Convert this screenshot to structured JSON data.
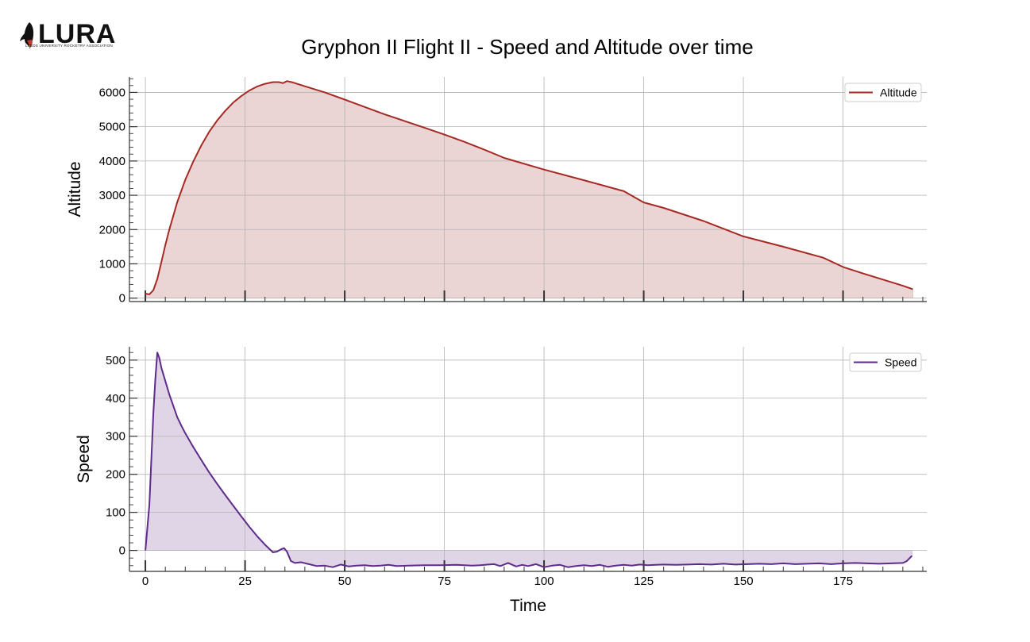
{
  "logo": {
    "wordmark": "LURA",
    "subtitle": "LEEDS UNIVERSITY ROCKETRY ASSOCIATION"
  },
  "figure_title": "Gryphon II Flight II - Speed and Altitude over time",
  "colors": {
    "altitude": "#a52a24",
    "altitude_fill": "#ebd5d4",
    "speed": "#5e2b8a",
    "speed_fill": "#e0d5e7",
    "grid": "#b3b3b3",
    "axis": "#333333"
  },
  "chart_data": [
    {
      "type": "area",
      "ylabel": "Altitude",
      "xlabel": "",
      "legend": "Altitude",
      "legend_position": "top-right",
      "grid": true,
      "xlim": [
        -4,
        196
      ],
      "ylim": [
        -100,
        6450
      ],
      "yticks": [
        0,
        1000,
        2000,
        3000,
        4000,
        5000,
        6000
      ],
      "series": [
        {
          "name": "Altitude",
          "x": [
            0,
            1,
            2,
            3,
            4,
            5,
            6,
            7,
            8,
            10,
            12,
            14,
            16,
            18,
            20,
            22,
            24,
            26,
            28,
            30,
            32,
            33.5,
            34.5,
            35.5,
            37,
            40,
            45,
            50,
            60,
            70,
            75,
            80,
            85,
            90,
            100,
            110,
            120,
            125,
            130,
            140,
            150,
            160,
            170,
            175,
            180,
            185,
            190,
            192.5
          ],
          "y": [
            130,
            110,
            230,
            560,
            1050,
            1550,
            2000,
            2400,
            2800,
            3450,
            3980,
            4450,
            4850,
            5180,
            5460,
            5700,
            5890,
            6050,
            6170,
            6250,
            6300,
            6300,
            6270,
            6330,
            6290,
            6180,
            6000,
            5790,
            5360,
            4970,
            4770,
            4560,
            4330,
            4090,
            3750,
            3440,
            3120,
            2790,
            2630,
            2250,
            1800,
            1500,
            1180,
            910,
            720,
            540,
            360,
            260
          ]
        }
      ]
    },
    {
      "type": "area",
      "ylabel": "Speed",
      "xlabel": "Time",
      "legend": "Speed",
      "legend_position": "top-right",
      "grid": true,
      "xlim": [
        -4,
        196
      ],
      "ylim": [
        -55,
        535
      ],
      "xticks": [
        0,
        25,
        50,
        75,
        100,
        125,
        150,
        175
      ],
      "yticks": [
        0,
        100,
        200,
        300,
        400,
        500
      ],
      "series": [
        {
          "name": "Speed",
          "x": [
            0,
            1,
            1.5,
            2,
            2.5,
            3,
            3.5,
            4,
            5,
            6,
            7,
            8,
            9,
            10,
            12,
            14,
            16,
            18,
            20,
            22,
            24,
            26,
            28,
            30,
            32,
            33,
            34,
            34.8,
            35.5,
            36.5,
            37.5,
            39,
            41,
            43,
            45,
            47,
            49,
            51,
            53,
            55,
            57,
            59,
            61,
            63,
            66,
            70,
            74,
            78,
            82,
            84,
            86,
            87.5,
            89,
            91,
            93,
            94.5,
            96,
            98,
            100,
            102,
            104,
            106,
            108,
            110,
            112,
            114,
            116,
            118,
            120,
            122,
            124,
            126,
            128,
            130,
            133,
            136,
            139,
            142,
            145,
            148,
            151,
            154,
            157,
            160,
            163,
            166,
            169,
            172,
            175,
            178,
            181,
            184,
            187,
            190,
            191,
            192.3
          ],
          "y": [
            0,
            120,
            240,
            360,
            450,
            520,
            505,
            480,
            445,
            410,
            380,
            350,
            328,
            308,
            272,
            238,
            205,
            175,
            146,
            118,
            90,
            63,
            38,
            15,
            -5,
            -3,
            3,
            6,
            -3,
            -28,
            -33,
            -31,
            -36,
            -41,
            -40,
            -44,
            -37,
            -42,
            -40,
            -39,
            -41,
            -40,
            -38,
            -41,
            -40,
            -39,
            -39,
            -38,
            -40,
            -39,
            -37,
            -36,
            -41,
            -33,
            -42,
            -38,
            -41,
            -36,
            -44,
            -40,
            -38,
            -44,
            -41,
            -39,
            -41,
            -38,
            -43,
            -40,
            -38,
            -40,
            -37,
            -39,
            -38,
            -37,
            -38,
            -37,
            -36,
            -37,
            -35,
            -37,
            -36,
            -35,
            -36,
            -34,
            -36,
            -35,
            -34,
            -36,
            -34,
            -33,
            -34,
            -35,
            -34,
            -33,
            -28,
            -14
          ]
        }
      ]
    }
  ]
}
